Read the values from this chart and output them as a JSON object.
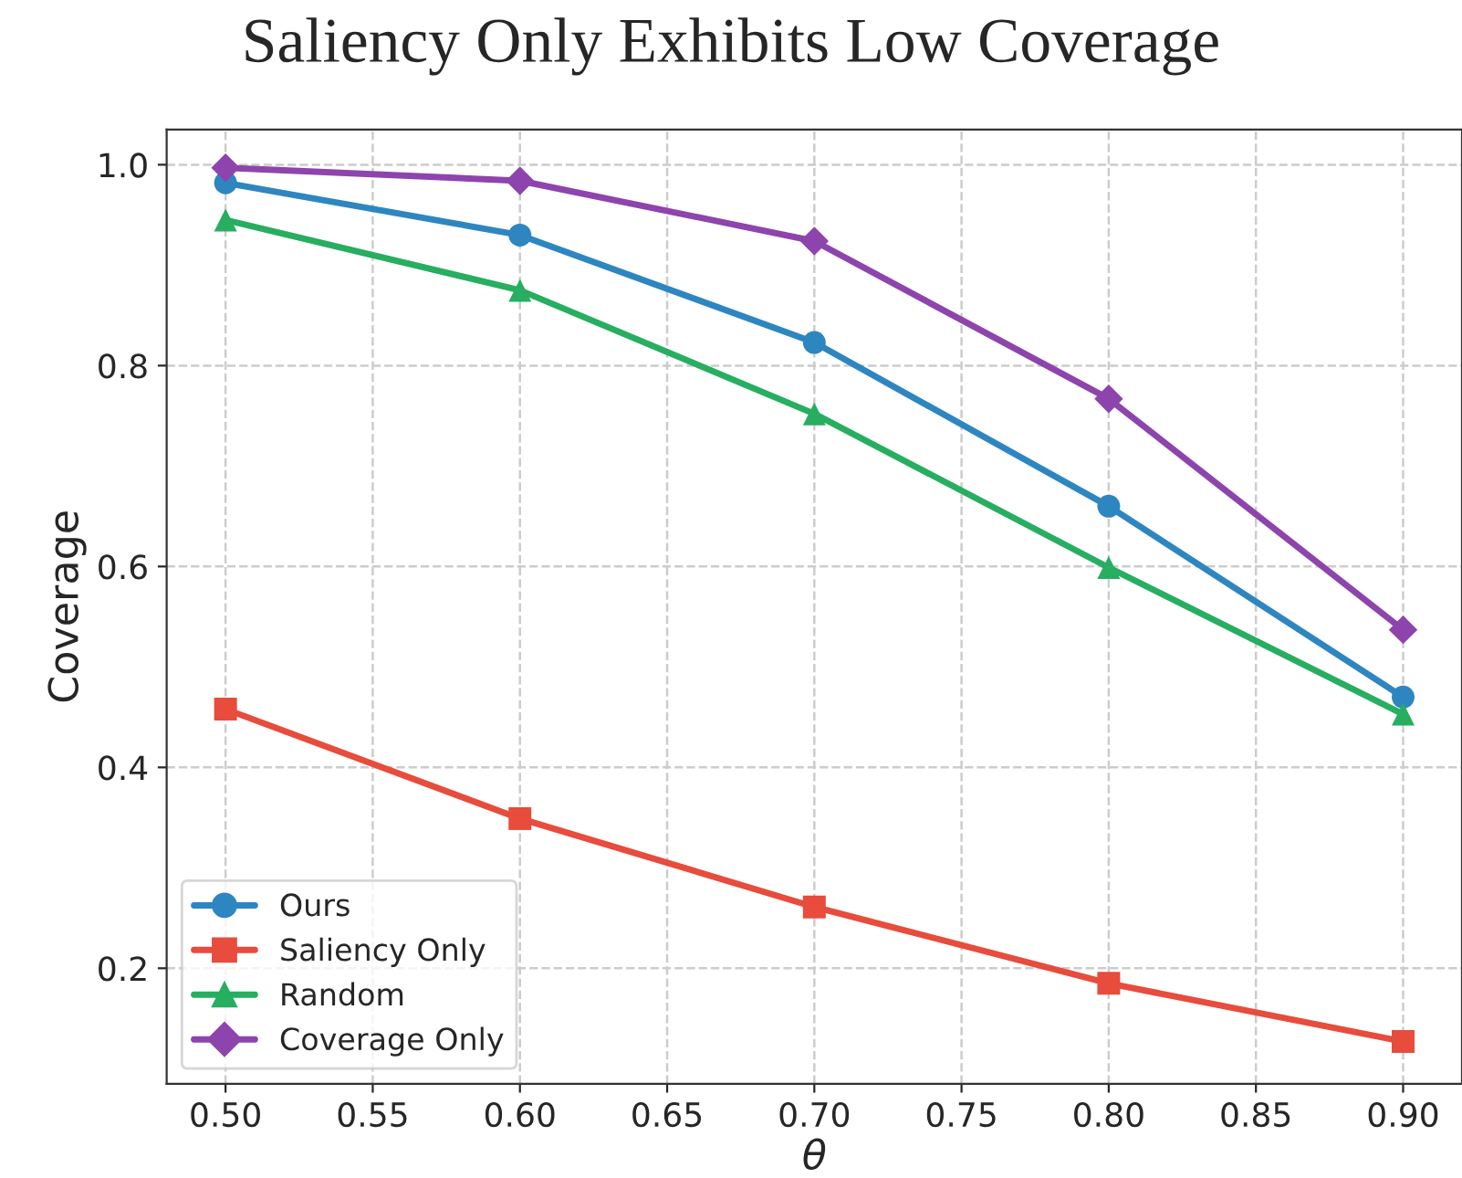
{
  "chart_data": {
    "type": "line",
    "title": "Saliency Only Exhibits Low Coverage",
    "xlabel": "θ",
    "ylabel": "Coverage",
    "x": [
      0.5,
      0.6,
      0.7,
      0.8,
      0.9
    ],
    "series": [
      {
        "name": "Ours",
        "color": "#2e86c1",
        "marker": "circle",
        "values": [
          0.982,
          0.93,
          0.823,
          0.66,
          0.47
        ]
      },
      {
        "name": "Saliency Only",
        "color": "#e74c3c",
        "marker": "square",
        "values": [
          0.458,
          0.349,
          0.261,
          0.185,
          0.127
        ]
      },
      {
        "name": "Random",
        "color": "#27ae60",
        "marker": "triangle",
        "values": [
          0.945,
          0.875,
          0.752,
          0.599,
          0.453
        ]
      },
      {
        "name": "Coverage Only",
        "color": "#8e44ad",
        "marker": "diamond",
        "values": [
          0.997,
          0.984,
          0.924,
          0.767,
          0.537
        ]
      }
    ],
    "xlim": [
      0.48,
      0.92
    ],
    "xticks": [
      {
        "value": 0.5,
        "label": "0.50"
      },
      {
        "value": 0.55,
        "label": "0.55"
      },
      {
        "value": 0.6,
        "label": "0.60"
      },
      {
        "value": 0.65,
        "label": "0.65"
      },
      {
        "value": 0.7,
        "label": "0.70"
      },
      {
        "value": 0.75,
        "label": "0.75"
      },
      {
        "value": 0.8,
        "label": "0.80"
      },
      {
        "value": 0.85,
        "label": "0.85"
      },
      {
        "value": 0.9,
        "label": "0.90"
      }
    ],
    "ylim": [
      0.085,
      1.035
    ],
    "yticks": [
      0.2,
      0.4,
      0.6,
      0.8,
      {
        "value": 1.0,
        "label": "1.0"
      }
    ],
    "grid": true,
    "legend": "bottom left",
    "line_style": "solid"
  }
}
